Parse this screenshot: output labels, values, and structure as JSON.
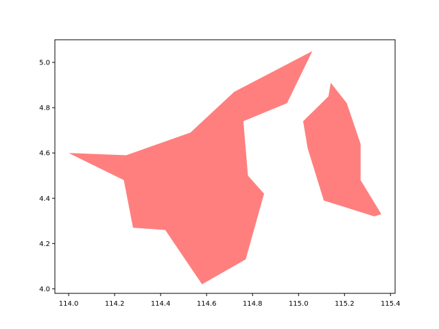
{
  "chart_data": {
    "type": "area",
    "title": "",
    "xlabel": "",
    "ylabel": "",
    "xlim": [
      113.94,
      115.42
    ],
    "ylim": [
      3.98,
      5.1
    ],
    "grid": false,
    "fill_color": "#ff7f7f",
    "x_ticks": [
      114.0,
      114.2,
      114.4,
      114.6,
      114.8,
      115.0,
      115.2,
      115.4
    ],
    "x_tick_labels": [
      "114.0",
      "114.2",
      "114.4",
      "114.6",
      "114.8",
      "115.0",
      "115.2",
      "115.4"
    ],
    "y_ticks": [
      4.0,
      4.2,
      4.4,
      4.6,
      4.8,
      5.0
    ],
    "y_tick_labels": [
      "4.0",
      "4.2",
      "4.4",
      "4.6",
      "4.8",
      "5.0"
    ],
    "polygons": [
      {
        "points": [
          [
            114.0,
            4.6
          ],
          [
            114.25,
            4.59
          ],
          [
            114.53,
            4.69
          ],
          [
            114.72,
            4.87
          ],
          [
            115.06,
            5.05
          ],
          [
            114.95,
            4.82
          ],
          [
            114.76,
            4.74
          ],
          [
            114.78,
            4.5
          ],
          [
            114.85,
            4.42
          ],
          [
            114.77,
            4.13
          ],
          [
            114.58,
            4.02
          ],
          [
            114.42,
            4.26
          ],
          [
            114.28,
            4.27
          ],
          [
            114.24,
            4.48
          ]
        ]
      },
      {
        "points": [
          [
            115.02,
            4.74
          ],
          [
            115.13,
            4.85
          ],
          [
            115.14,
            4.91
          ],
          [
            115.21,
            4.82
          ],
          [
            115.27,
            4.64
          ],
          [
            115.27,
            4.48
          ],
          [
            115.36,
            4.33
          ],
          [
            115.33,
            4.32
          ],
          [
            115.11,
            4.39
          ],
          [
            115.04,
            4.62
          ]
        ]
      }
    ]
  }
}
